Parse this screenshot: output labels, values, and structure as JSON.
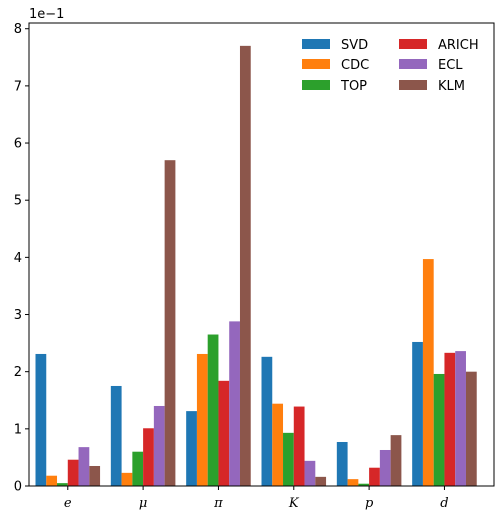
{
  "chart_data": {
    "type": "bar",
    "categories": [
      "e",
      "μ",
      "π",
      "K",
      "p",
      "d"
    ],
    "series": [
      {
        "name": "SVD",
        "color": "#1f77b4",
        "values": [
          2.31,
          1.75,
          1.31,
          2.26,
          0.77,
          2.52
        ]
      },
      {
        "name": "CDC",
        "color": "#ff7f0e",
        "values": [
          0.18,
          0.23,
          2.31,
          1.44,
          0.12,
          3.97
        ]
      },
      {
        "name": "TOP",
        "color": "#2ca02c",
        "values": [
          0.05,
          0.6,
          2.65,
          0.93,
          0.04,
          1.96
        ]
      },
      {
        "name": "ARICH",
        "color": "#d62728",
        "values": [
          0.46,
          1.01,
          1.84,
          1.39,
          0.32,
          2.33
        ]
      },
      {
        "name": "ECL",
        "color": "#9467bd",
        "values": [
          0.68,
          1.4,
          2.88,
          0.44,
          0.63,
          2.36
        ]
      },
      {
        "name": "KLM",
        "color": "#8c564b",
        "values": [
          0.35,
          5.7,
          7.7,
          0.16,
          0.89,
          2.0
        ]
      }
    ],
    "yticks": [
      "0",
      "1",
      "2",
      "3",
      "4",
      "5",
      "6",
      "7",
      "8"
    ],
    "ylim": [
      0,
      8.1
    ],
    "y_offset_label": "1e−1",
    "xlabel": "",
    "ylabel": "",
    "legend": {
      "placement": "top-right",
      "columns": 2
    }
  }
}
